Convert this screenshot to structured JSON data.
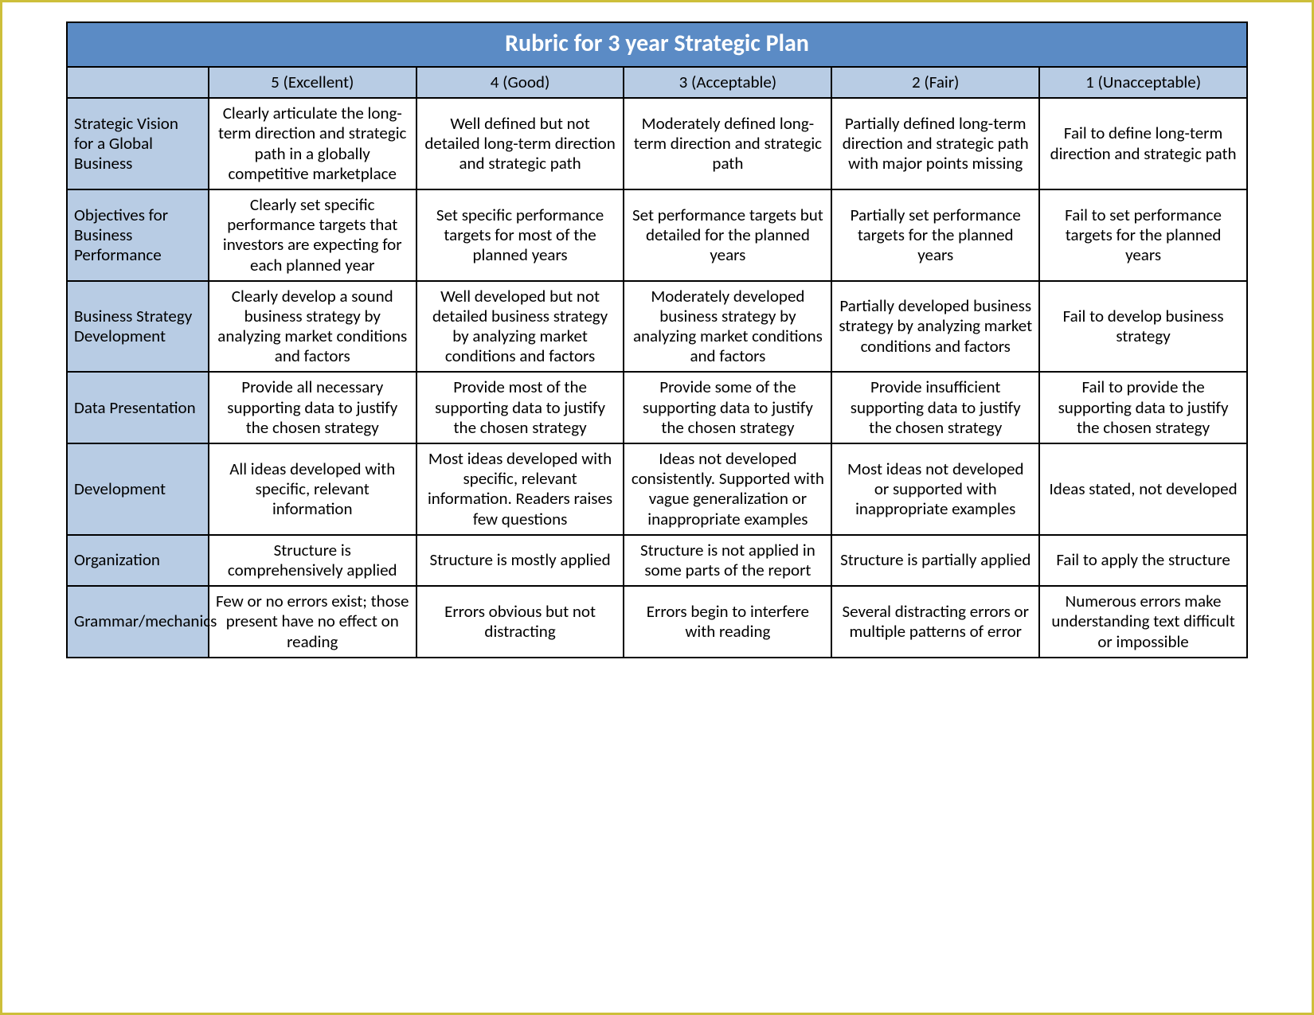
{
  "rubric": {
    "title": "Rubric for 3 year Strategic Plan",
    "type": "table",
    "colors": {
      "title_bg": "#5b8bc5",
      "title_text": "#ffffff",
      "header_bg": "#b8cce4",
      "cell_bg": "#ffffff",
      "border": "#000000",
      "frame_border": "#cdbf3a",
      "text": "#000000"
    },
    "fonts": {
      "title_size_pt": 22,
      "header_size_pt": 15,
      "cell_size_pt": 15,
      "family": "Calibri"
    },
    "columns": [
      "5 (Excellent)",
      "4 (Good)",
      "3 (Acceptable)",
      "2 (Fair)",
      "1 (Unacceptable)"
    ],
    "rows": [
      {
        "label": "Strategic Vision for a Global Business",
        "cells": [
          "Clearly articulate the long-term direction and strategic path in a globally competitive marketplace",
          "Well defined but not detailed long-term direction and strategic path",
          "Moderately defined long-term direction and strategic path",
          "Partially defined long-term direction and strategic path with major points missing",
          "Fail to define long-term direction and strategic path"
        ]
      },
      {
        "label": "Objectives for Business Performance",
        "cells": [
          "Clearly set specific performance targets that investors are expecting for each planned year",
          "Set specific performance targets for most of the planned years",
          "Set performance targets but detailed for the planned years",
          "Partially set performance targets for the planned years",
          "Fail to set performance targets for the planned years"
        ]
      },
      {
        "label": "Business Strategy Development",
        "cells": [
          "Clearly develop a sound business strategy by analyzing market conditions and factors",
          "Well developed but not detailed business strategy by analyzing market conditions and factors",
          "Moderately developed business strategy by analyzing market conditions and factors",
          "Partially developed business strategy by analyzing market conditions and factors",
          "Fail to develop business strategy"
        ]
      },
      {
        "label": "Data Presentation",
        "cells": [
          "Provide all necessary supporting data to justify the chosen strategy",
          "Provide most of the supporting data to justify the chosen strategy",
          "Provide some of the supporting data to justify the chosen strategy",
          "Provide insufficient supporting data to justify the chosen strategy",
          "Fail to provide the supporting data to justify the chosen strategy"
        ]
      },
      {
        "label": "Development",
        "cells": [
          "All ideas developed with specific, relevant information",
          "Most ideas developed with specific, relevant information. Readers raises few questions",
          "Ideas not developed consistently. Supported with vague generalization or inappropriate examples",
          "Most ideas not developed or supported with inappropriate examples",
          "Ideas stated, not developed"
        ]
      },
      {
        "label": "Organization",
        "cells": [
          "Structure is comprehensively applied",
          "Structure is mostly applied",
          "Structure is not applied in some parts of the report",
          "Structure is partially applied",
          "Fail to apply the structure"
        ]
      },
      {
        "label": "Grammar/mechanics",
        "cells": [
          "Few or no errors exist; those present have no effect on reading",
          "Errors obvious but not distracting",
          "Errors begin to interfere with reading",
          "Several distracting errors or multiple patterns of error",
          "Numerous errors make understanding text difficult or impossible"
        ]
      }
    ]
  }
}
